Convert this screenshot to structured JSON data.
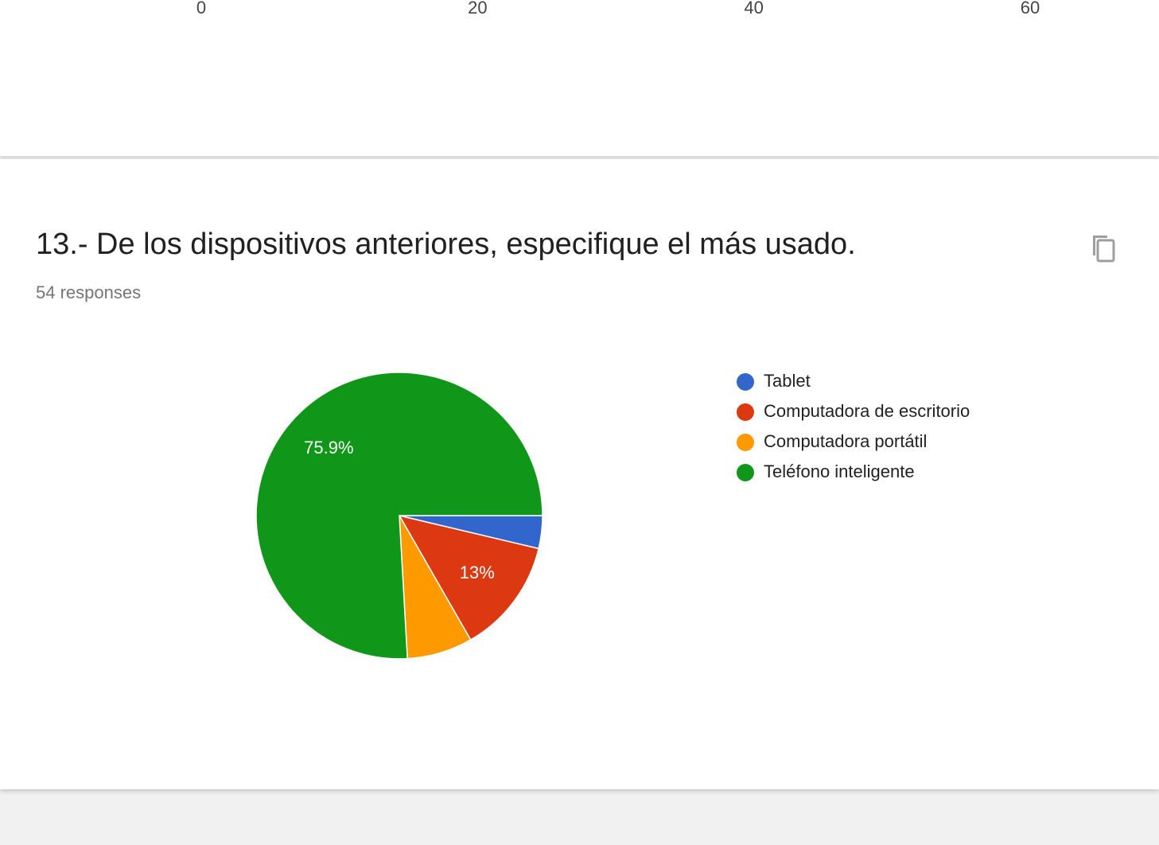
{
  "chart_data": [
    {
      "type": "bar",
      "xlim": [
        0,
        60
      ],
      "xticks": [
        0,
        20,
        40,
        60
      ]
    },
    {
      "type": "pie",
      "title": "13.- De los dispositivos anteriores, especifique el más usado.",
      "subtitle": "54 responses",
      "categories": [
        "Tablet",
        "Computadora de escritorio",
        "Computadora portátil",
        "Teléfono inteligente"
      ],
      "values": [
        3.7,
        13,
        7.4,
        75.9
      ],
      "value_labels": [
        null,
        "13%",
        null,
        "75.9%"
      ],
      "colors": [
        "#3366cc",
        "#dc3912",
        "#ff9900",
        "#109618"
      ],
      "legend": "right"
    }
  ]
}
